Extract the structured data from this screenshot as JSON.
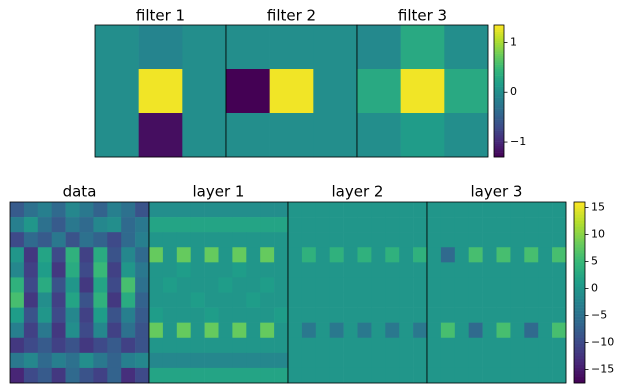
{
  "chart_data": [
    {
      "type": "heatmap",
      "colormap": "viridis",
      "clim": [
        -1.3,
        1.35
      ],
      "cticks": [
        {
          "value": -1,
          "label": "−1"
        },
        0,
        1
      ],
      "panels": [
        {
          "title": "filter 1",
          "values": [
            [
              0,
              -0.1,
              0
            ],
            [
              0,
              1.3,
              0
            ],
            [
              0,
              -1.2,
              0
            ]
          ]
        },
        {
          "title": "filter 2",
          "values": [
            [
              0,
              0,
              0
            ],
            [
              -1.3,
              1.3,
              0
            ],
            [
              0,
              0,
              0
            ]
          ]
        },
        {
          "title": "filter 3",
          "values": [
            [
              -0.05,
              0.3,
              0
            ],
            [
              0.3,
              1.3,
              0.3
            ],
            [
              0,
              0.15,
              0
            ]
          ]
        }
      ]
    },
    {
      "type": "heatmap",
      "colormap": "viridis",
      "clim": [
        -17.5,
        16
      ],
      "cticks": [
        {
          "value": -15,
          "label": "−15"
        },
        {
          "value": -10,
          "label": "−10"
        },
        {
          "value": -5,
          "label": "−5"
        },
        0,
        5,
        10,
        15
      ],
      "panels": [
        {
          "title": "data",
          "values": [
            [
              -8,
              -5,
              -3,
              -6,
              -2,
              -4,
              -7,
              -3,
              -5,
              -9
            ],
            [
              -3,
              0,
              -5,
              -8,
              -4,
              -6,
              -2,
              -1,
              -6,
              -4
            ],
            [
              -10,
              -6,
              -8,
              -4,
              -9,
              -5,
              -7,
              -10,
              -6,
              -3
            ],
            [
              0,
              -12,
              2,
              -10,
              4,
              -11,
              3,
              -9,
              -2,
              -6
            ],
            [
              -2,
              -11,
              1,
              -12,
              3,
              -10,
              5,
              -11,
              0,
              -4
            ],
            [
              4,
              -10,
              3,
              -9,
              0,
              -12,
              2,
              -10,
              6,
              -5
            ],
            [
              6,
              -12,
              -1,
              -11,
              2,
              -9,
              4,
              -12,
              3,
              -7
            ],
            [
              1,
              -9,
              0,
              -10,
              -2,
              -11,
              1,
              -9,
              -3,
              -8
            ],
            [
              -3,
              -11,
              -4,
              -12,
              -1,
              -10,
              -2,
              -11,
              -5,
              -9
            ],
            [
              -12,
              -10,
              -8,
              -11,
              -9,
              -12,
              -10,
              -8,
              -11,
              -9
            ],
            [
              -4,
              -2,
              -6,
              -3,
              -5,
              -1,
              -4,
              -7,
              -3,
              -2
            ],
            [
              -14,
              -10,
              -8,
              -12,
              -6,
              -9,
              -11,
              -7,
              -13,
              -10
            ]
          ]
        },
        {
          "title": "layer 1",
          "values": [
            [
              -1,
              -1,
              -1,
              -1,
              -1,
              -1,
              -1,
              -1,
              -1,
              -1
            ],
            [
              2,
              2,
              2,
              2,
              2,
              2,
              2,
              2,
              2,
              2
            ],
            [
              0,
              0,
              0,
              0,
              0,
              0,
              0,
              0,
              0,
              0
            ],
            [
              8,
              0,
              8,
              0,
              8,
              0,
              8,
              0,
              8,
              0
            ],
            [
              0,
              0,
              1,
              0,
              0,
              0,
              1,
              0,
              0,
              0
            ],
            [
              0,
              1,
              0,
              0,
              0,
              1,
              0,
              0,
              1,
              0
            ],
            [
              0,
              0,
              0,
              1,
              0,
              0,
              0,
              1,
              0,
              0
            ],
            [
              1,
              0,
              0,
              0,
              1,
              0,
              0,
              0,
              0,
              1
            ],
            [
              8,
              0,
              8,
              0,
              8,
              0,
              8,
              0,
              8,
              0
            ],
            [
              0,
              0,
              0,
              0,
              0,
              0,
              0,
              0,
              0,
              0
            ],
            [
              -2,
              -2,
              -2,
              -2,
              -2,
              -2,
              -2,
              -2,
              -2,
              -2
            ],
            [
              2,
              2,
              2,
              2,
              2,
              2,
              2,
              2,
              2,
              2
            ]
          ]
        },
        {
          "title": "layer 2",
          "values": [
            [
              0,
              0,
              0,
              0,
              0,
              0,
              0,
              0,
              0,
              0
            ],
            [
              0,
              0,
              0,
              0,
              0,
              0,
              0,
              0,
              0,
              0
            ],
            [
              0,
              0,
              0,
              0,
              0,
              0,
              0,
              0,
              0,
              0
            ],
            [
              0,
              4,
              0,
              4,
              0,
              4,
              0,
              4,
              0,
              4
            ],
            [
              0,
              0,
              0,
              0,
              0,
              0,
              0,
              0,
              0,
              0
            ],
            [
              0,
              0,
              0,
              0,
              0,
              0,
              0,
              0,
              0,
              0
            ],
            [
              0,
              0,
              0,
              0,
              0,
              0,
              0,
              0,
              0,
              0
            ],
            [
              0,
              0,
              0,
              0,
              0,
              0,
              0,
              0,
              0,
              0
            ],
            [
              0,
              -4,
              0,
              -4,
              0,
              -4,
              0,
              -4,
              0,
              -4
            ],
            [
              0,
              0,
              0,
              0,
              0,
              0,
              0,
              0,
              0,
              0
            ],
            [
              0,
              0,
              0,
              0,
              0,
              0,
              0,
              0,
              0,
              0
            ],
            [
              0,
              0,
              0,
              0,
              0,
              0,
              0,
              0,
              0,
              0
            ]
          ]
        },
        {
          "title": "layer 3",
          "values": [
            [
              0,
              0,
              0,
              0,
              0,
              0,
              0,
              0,
              0,
              0
            ],
            [
              0,
              0,
              0,
              0,
              0,
              0,
              0,
              0,
              0,
              0
            ],
            [
              0,
              0,
              0,
              0,
              0,
              0,
              0,
              0,
              0,
              0
            ],
            [
              0,
              -6,
              0,
              6,
              0,
              6,
              0,
              6,
              0,
              6
            ],
            [
              0,
              0,
              0,
              0,
              0,
              0,
              0,
              0,
              0,
              0
            ],
            [
              0,
              0,
              0,
              0,
              0,
              0,
              0,
              0,
              0,
              0
            ],
            [
              0,
              0,
              0,
              0,
              0,
              0,
              0,
              0,
              0,
              0
            ],
            [
              0,
              0,
              0,
              0,
              0,
              0,
              0,
              0,
              0,
              0
            ],
            [
              0,
              6,
              0,
              -6,
              0,
              6,
              0,
              -6,
              0,
              6
            ],
            [
              0,
              0,
              0,
              0,
              0,
              0,
              0,
              0,
              0,
              0
            ],
            [
              0,
              0,
              0,
              0,
              0,
              0,
              0,
              0,
              0,
              0
            ],
            [
              0,
              0,
              0,
              0,
              0,
              0,
              0,
              0,
              0,
              0
            ]
          ]
        }
      ]
    }
  ]
}
